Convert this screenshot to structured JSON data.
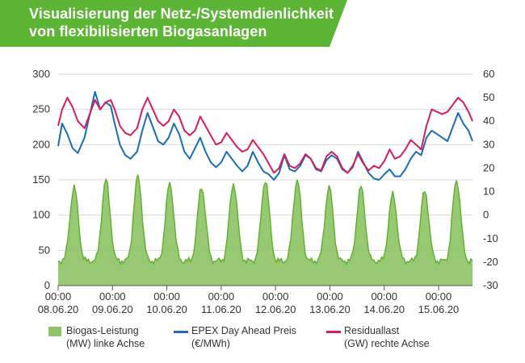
{
  "title": {
    "line1": "Visualisierung der Netz-/Systemdienlichkeit",
    "line2": "von flexibilisierten Biogasanlagen",
    "banner_color": "#5db535"
  },
  "chart_data": {
    "type": "area",
    "x": [
      "00:00 08.06.20",
      "00:00 09.06.20",
      "00:00 10.06.20",
      "00:00 11.06.20",
      "00:00 12.06.20",
      "00:00 13.06.20",
      "00:00 14.06.20",
      "00:00 15.06.20"
    ],
    "x_tick_labels": [
      {
        "time": "00:00",
        "date": "08.06.20"
      },
      {
        "time": "00:00",
        "date": "09.06.20"
      },
      {
        "time": "00:00",
        "date": "10.06.20"
      },
      {
        "time": "00:00",
        "date": "11.06.20"
      },
      {
        "time": "00:00",
        "date": "12.06.20"
      },
      {
        "time": "00:00",
        "date": "13.06.20"
      },
      {
        "time": "00:00",
        "date": "14.06.20"
      },
      {
        "time": "00:00",
        "date": "15.06.20"
      }
    ],
    "y_left": {
      "ylim": [
        0,
        300
      ],
      "ticks": [
        0,
        50,
        100,
        150,
        200,
        250,
        300
      ]
    },
    "y_right": {
      "ylim": [
        -30,
        60
      ],
      "ticks": [
        -30,
        -20,
        -10,
        0,
        10,
        20,
        30,
        40,
        50,
        60
      ]
    },
    "grid": "horizontal",
    "legend_position": "bottom",
    "series": [
      {
        "name": "Biogas-Leistung (MW) linke Achse",
        "axis": "left",
        "style": "area",
        "color": "#8dc466",
        "line_color": "#5fae2e",
        "peaks": [
          140,
          150,
          155,
          145,
          140,
          145,
          150,
          150,
          140,
          140,
          130,
          135,
          150
        ],
        "trough": 35
      },
      {
        "name": "EPEX Day Ahead Preis (€/MWh)",
        "axis": "left",
        "style": "line",
        "color": "#1a6db5",
        "points": [
          [
            0.0,
            198
          ],
          [
            0.15,
            230
          ],
          [
            0.35,
            215
          ],
          [
            0.55,
            195
          ],
          [
            0.75,
            188
          ],
          [
            1.0,
            210
          ],
          [
            1.4,
            275
          ],
          [
            1.6,
            250
          ],
          [
            1.8,
            260
          ],
          [
            2.0,
            255
          ],
          [
            2.15,
            230
          ],
          [
            2.35,
            200
          ],
          [
            2.55,
            185
          ],
          [
            2.75,
            180
          ],
          [
            3.0,
            190
          ],
          [
            3.2,
            220
          ],
          [
            3.4,
            245
          ],
          [
            3.6,
            225
          ],
          [
            3.8,
            205
          ],
          [
            4.0,
            200
          ],
          [
            4.2,
            210
          ],
          [
            4.4,
            230
          ],
          [
            4.6,
            215
          ],
          [
            4.8,
            190
          ],
          [
            5.0,
            180
          ],
          [
            5.2,
            195
          ],
          [
            5.4,
            210
          ],
          [
            5.6,
            190
          ],
          [
            5.8,
            175
          ],
          [
            6.0,
            168
          ],
          [
            6.2,
            175
          ],
          [
            6.4,
            190
          ],
          [
            6.6,
            180
          ],
          [
            6.8,
            170
          ],
          [
            7.0,
            162
          ],
          [
            7.2,
            170
          ],
          [
            7.4,
            190
          ],
          [
            7.6,
            175
          ],
          [
            7.8,
            162
          ],
          [
            8.0,
            158
          ],
          [
            8.2,
            150
          ],
          [
            8.4,
            160
          ],
          [
            8.6,
            185
          ],
          [
            8.8,
            165
          ],
          [
            9.0,
            162
          ],
          [
            9.2,
            170
          ],
          [
            9.4,
            185
          ],
          [
            9.6,
            180
          ],
          [
            9.8,
            165
          ],
          [
            10.0,
            162
          ],
          [
            10.2,
            178
          ],
          [
            10.4,
            185
          ],
          [
            10.6,
            180
          ],
          [
            10.8,
            165
          ],
          [
            11.0,
            160
          ],
          [
            11.2,
            168
          ],
          [
            11.4,
            190
          ],
          [
            11.6,
            175
          ],
          [
            11.8,
            160
          ],
          [
            12.0,
            152
          ],
          [
            12.2,
            150
          ],
          [
            12.4,
            158
          ],
          [
            12.6,
            165
          ],
          [
            12.8,
            155
          ],
          [
            13.0,
            155
          ],
          [
            13.2,
            165
          ],
          [
            13.4,
            180
          ],
          [
            13.6,
            190
          ],
          [
            13.8,
            185
          ],
          [
            14.0,
            210
          ],
          [
            14.2,
            220
          ],
          [
            14.4,
            215
          ],
          [
            14.6,
            210
          ],
          [
            14.8,
            205
          ],
          [
            15.0,
            225
          ],
          [
            15.2,
            245
          ],
          [
            15.4,
            230
          ],
          [
            15.6,
            220
          ],
          [
            15.75,
            205
          ]
        ]
      },
      {
        "name": "Residuallast (GW) rechte Achse",
        "axis": "right",
        "style": "line",
        "color": "#d41e5c",
        "points": [
          [
            0.0,
            38
          ],
          [
            0.15,
            45
          ],
          [
            0.35,
            50
          ],
          [
            0.55,
            46
          ],
          [
            0.75,
            40
          ],
          [
            1.0,
            37
          ],
          [
            1.4,
            49
          ],
          [
            1.6,
            45
          ],
          [
            1.8,
            48
          ],
          [
            2.0,
            49
          ],
          [
            2.15,
            45
          ],
          [
            2.35,
            38
          ],
          [
            2.55,
            35
          ],
          [
            2.75,
            34
          ],
          [
            3.0,
            37
          ],
          [
            3.2,
            45
          ],
          [
            3.4,
            50
          ],
          [
            3.6,
            45
          ],
          [
            3.8,
            40
          ],
          [
            4.0,
            38
          ],
          [
            4.2,
            40
          ],
          [
            4.4,
            45
          ],
          [
            4.6,
            42
          ],
          [
            4.8,
            36
          ],
          [
            5.0,
            34
          ],
          [
            5.2,
            36
          ],
          [
            5.4,
            42
          ],
          [
            5.6,
            38
          ],
          [
            5.8,
            34
          ],
          [
            6.0,
            30
          ],
          [
            6.2,
            31
          ],
          [
            6.4,
            35
          ],
          [
            6.6,
            32
          ],
          [
            6.8,
            29
          ],
          [
            7.0,
            27
          ],
          [
            7.2,
            28
          ],
          [
            7.4,
            32
          ],
          [
            7.6,
            29
          ],
          [
            7.8,
            26
          ],
          [
            8.0,
            22
          ],
          [
            8.2,
            18
          ],
          [
            8.4,
            20
          ],
          [
            8.6,
            26
          ],
          [
            8.8,
            21
          ],
          [
            9.0,
            20
          ],
          [
            9.2,
            22
          ],
          [
            9.4,
            26
          ],
          [
            9.6,
            24
          ],
          [
            9.8,
            20
          ],
          [
            10.0,
            19
          ],
          [
            10.2,
            25
          ],
          [
            10.4,
            27
          ],
          [
            10.6,
            25
          ],
          [
            10.8,
            20
          ],
          [
            11.0,
            18
          ],
          [
            11.2,
            21
          ],
          [
            11.4,
            26
          ],
          [
            11.6,
            22
          ],
          [
            11.8,
            19
          ],
          [
            12.0,
            21
          ],
          [
            12.2,
            20
          ],
          [
            12.4,
            23
          ],
          [
            12.6,
            28
          ],
          [
            12.8,
            24
          ],
          [
            13.0,
            25
          ],
          [
            13.2,
            28
          ],
          [
            13.4,
            32
          ],
          [
            13.6,
            30
          ],
          [
            13.8,
            28
          ],
          [
            14.0,
            38
          ],
          [
            14.2,
            45
          ],
          [
            14.4,
            44
          ],
          [
            14.6,
            43
          ],
          [
            14.8,
            44
          ],
          [
            15.0,
            47
          ],
          [
            15.2,
            50
          ],
          [
            15.4,
            48
          ],
          [
            15.6,
            44
          ],
          [
            15.75,
            40
          ]
        ]
      }
    ]
  },
  "legend": [
    {
      "line1": "Biogas-Leistung",
      "line2": "(MW) linke Achse",
      "swatch": "area",
      "color": "#8dc466"
    },
    {
      "line1": "EPEX Day Ahead Preis",
      "line2": "(€/MWh)",
      "swatch": "line",
      "color": "#1a6db5"
    },
    {
      "line1": "Residuallast",
      "line2": "(GW) rechte Achse",
      "swatch": "line",
      "color": "#d41e5c"
    }
  ]
}
